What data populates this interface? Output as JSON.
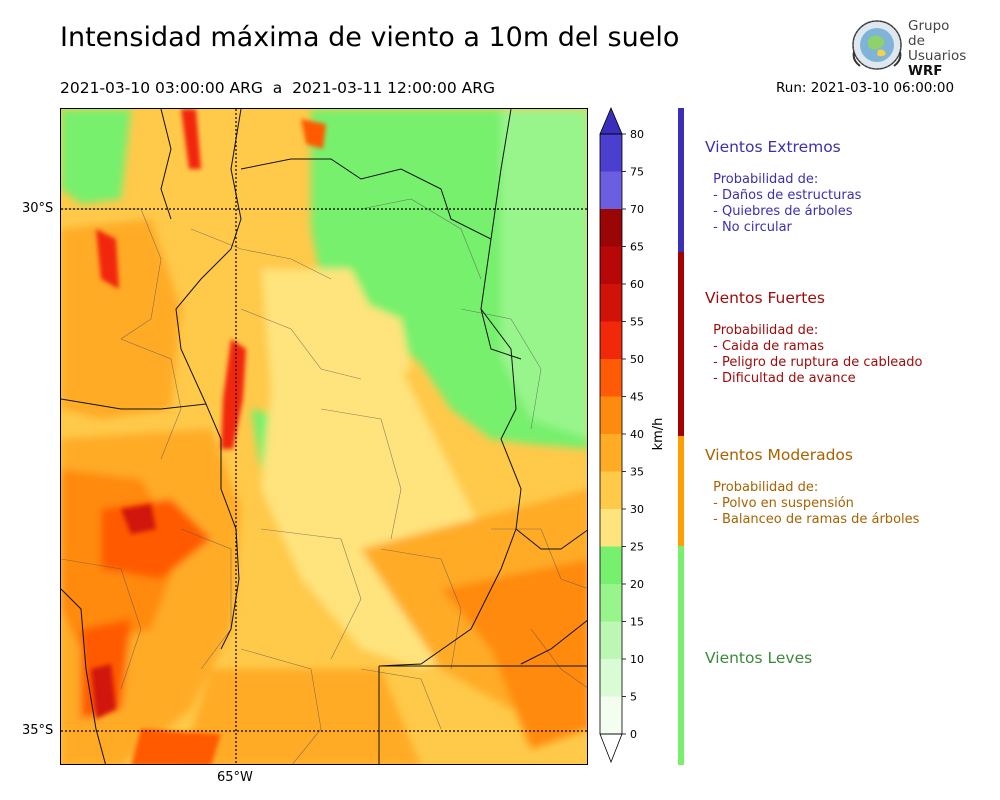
{
  "title": "Intensidad máxima de viento a 10m del suelo",
  "period": "2021-03-10 03:00:00 ARG  a  2021-03-11 12:00:00 ARG",
  "run": "Run: 2021-03-10 06:00:00",
  "logo": {
    "line1": "Grupo de",
    "line2": "Usuarios",
    "line3": "WRF"
  },
  "map": {
    "lat_labels": [
      "30°S",
      "35°S"
    ],
    "lon_labels": [
      "65°W"
    ]
  },
  "colorbar": {
    "unit": "km/h",
    "ticks": [
      "0",
      "5",
      "10",
      "15",
      "20",
      "25",
      "30",
      "35",
      "40",
      "45",
      "50",
      "55",
      "60",
      "65",
      "70",
      "75",
      "80"
    ],
    "colors": [
      "#f3fef1",
      "#dafcd4",
      "#bcf8b4",
      "#98f58c",
      "#77f06d",
      "#ffe37d",
      "#ffc94a",
      "#ffab26",
      "#ff8a10",
      "#ff5a05",
      "#f2280a",
      "#d11208",
      "#b70807",
      "#9a0606",
      "#6b5ee0",
      "#4b3fd0",
      "#3a2fbc"
    ],
    "top_color": "#3a2fbc",
    "bottom_color": "#ffffff"
  },
  "legend": [
    {
      "title": "Vientos Extremos",
      "color": "#3a2fb5",
      "bar_color": "#3a2fb5",
      "lines": [
        " Probabilidad de:",
        " - Daños de estructuras",
        " - Quiebres de árboles",
        " - No circular"
      ]
    },
    {
      "title": "Vientos Fuertes",
      "color": "#9e0a0a",
      "bar_color": "#a30000",
      "lines": [
        " Probabilidad de:",
        " - Caida de ramas",
        " - Peligro de ruptura de cableado",
        " - Dificultad de avance"
      ]
    },
    {
      "title": "Vientos Moderados",
      "color": "#a86200",
      "bar_color": "#ff9e00",
      "lines": [
        " Probabilidad de:",
        " - Polvo en suspensión",
        " - Balanceo de ramas de árboles"
      ]
    },
    {
      "title": "Vientos Leves",
      "color": "#3a8a3a",
      "bar_color": "#77f06d",
      "lines": []
    }
  ]
}
